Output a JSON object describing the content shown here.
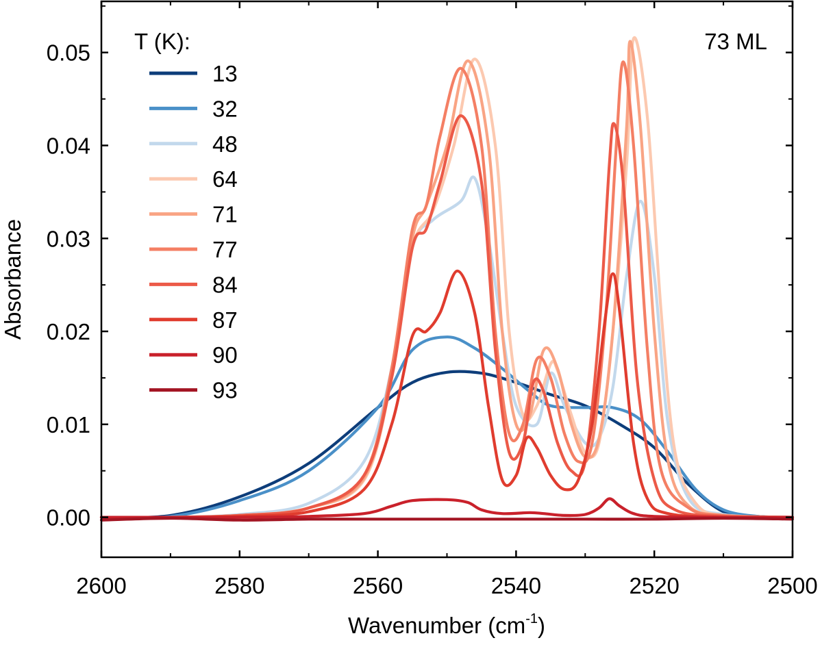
{
  "chart_data": {
    "type": "line",
    "title": "",
    "annotation": "73 ML",
    "xlabel": "Wavenumber (cm",
    "xlabel_sup": "-1",
    "xlabel_end": ")",
    "ylabel": "Absorbance",
    "xlim": [
      2600,
      2500
    ],
    "ylim": [
      -0.0043,
      0.0555
    ],
    "x_ticks": [
      2600,
      2580,
      2560,
      2540,
      2520,
      2500
    ],
    "x_tick_labels": [
      "2600",
      "2580",
      "2560",
      "2540",
      "2520",
      "2500"
    ],
    "y_ticks": [
      0.0,
      0.01,
      0.02,
      0.03,
      0.04,
      0.05
    ],
    "y_tick_labels": [
      "0.00",
      "0.01",
      "0.02",
      "0.03",
      "0.04",
      "0.05"
    ],
    "grid": false,
    "legend": {
      "title": "T (K):",
      "placement": "top-left",
      "entries": [
        "13",
        "32",
        "48",
        "64",
        "71",
        "77",
        "84",
        "87",
        "90",
        "93"
      ]
    },
    "series": [
      {
        "name": "13",
        "color": "#0d3d7a",
        "points": [
          [
            2600,
            0.0
          ],
          [
            2590,
            0.0002
          ],
          [
            2580,
            0.0022
          ],
          [
            2570,
            0.0058
          ],
          [
            2560,
            0.0118
          ],
          [
            2555,
            0.0145
          ],
          [
            2550,
            0.0156
          ],
          [
            2545,
            0.0155
          ],
          [
            2540,
            0.0145
          ],
          [
            2535,
            0.0132
          ],
          [
            2530,
            0.012
          ],
          [
            2525,
            0.01
          ],
          [
            2520,
            0.0075
          ],
          [
            2515,
            0.0035
          ],
          [
            2510,
            0.0006
          ],
          [
            2505,
            0.0001
          ],
          [
            2500,
            0.0
          ]
        ]
      },
      {
        "name": "32",
        "color": "#4a90c8",
        "points": [
          [
            2600,
            0.0
          ],
          [
            2590,
            0.0001
          ],
          [
            2580,
            0.0018
          ],
          [
            2570,
            0.005
          ],
          [
            2560,
            0.0118
          ],
          [
            2555,
            0.018
          ],
          [
            2550,
            0.0194
          ],
          [
            2546,
            0.0182
          ],
          [
            2542,
            0.016
          ],
          [
            2538,
            0.0135
          ],
          [
            2535,
            0.012
          ],
          [
            2530,
            0.0118
          ],
          [
            2526,
            0.0118
          ],
          [
            2522,
            0.0105
          ],
          [
            2518,
            0.007
          ],
          [
            2514,
            0.003
          ],
          [
            2510,
            0.0008
          ],
          [
            2505,
            0.0001
          ],
          [
            2500,
            0.0
          ]
        ]
      },
      {
        "name": "48",
        "color": "#c2d8ec",
        "points": [
          [
            2600,
            0.0
          ],
          [
            2590,
            0.0
          ],
          [
            2580,
            0.0003
          ],
          [
            2570,
            0.0015
          ],
          [
            2562,
            0.006
          ],
          [
            2558,
            0.016
          ],
          [
            2555,
            0.029
          ],
          [
            2552,
            0.032
          ],
          [
            2548,
            0.034
          ],
          [
            2546,
            0.0365
          ],
          [
            2544,
            0.03
          ],
          [
            2542,
            0.02
          ],
          [
            2540,
            0.012
          ],
          [
            2537,
            0.01
          ],
          [
            2535,
            0.0155
          ],
          [
            2533,
            0.012
          ],
          [
            2530,
            0.008
          ],
          [
            2528,
            0.0085
          ],
          [
            2526,
            0.014
          ],
          [
            2524,
            0.026
          ],
          [
            2522,
            0.034
          ],
          [
            2520,
            0.026
          ],
          [
            2518,
            0.01
          ],
          [
            2515,
            0.002
          ],
          [
            2510,
            0.0003
          ],
          [
            2500,
            0.0
          ]
        ]
      },
      {
        "name": "64",
        "color": "#fcc9b0",
        "points": [
          [
            2600,
            0.0
          ],
          [
            2590,
            0.0
          ],
          [
            2580,
            0.0002
          ],
          [
            2570,
            0.001
          ],
          [
            2562,
            0.004
          ],
          [
            2558,
            0.015
          ],
          [
            2555,
            0.029
          ],
          [
            2552,
            0.033
          ],
          [
            2549,
            0.04
          ],
          [
            2546,
            0.0493
          ],
          [
            2543,
            0.04
          ],
          [
            2541,
            0.02
          ],
          [
            2539,
            0.011
          ],
          [
            2537,
            0.012
          ],
          [
            2535,
            0.0165
          ],
          [
            2534,
            0.0158
          ],
          [
            2532,
            0.011
          ],
          [
            2530,
            0.007
          ],
          [
            2528,
            0.008
          ],
          [
            2526,
            0.02
          ],
          [
            2524,
            0.038
          ],
          [
            2523,
            0.0515
          ],
          [
            2521,
            0.043
          ],
          [
            2519,
            0.022
          ],
          [
            2517,
            0.007
          ],
          [
            2514,
            0.0015
          ],
          [
            2510,
            0.0002
          ],
          [
            2500,
            0.0
          ]
        ]
      },
      {
        "name": "71",
        "color": "#f9a484",
        "points": [
          [
            2600,
            0.0
          ],
          [
            2590,
            0.0
          ],
          [
            2580,
            0.0002
          ],
          [
            2570,
            0.001
          ],
          [
            2562,
            0.0042
          ],
          [
            2558,
            0.0155
          ],
          [
            2555,
            0.03
          ],
          [
            2553,
            0.0335
          ],
          [
            2550,
            0.04
          ],
          [
            2547,
            0.0491
          ],
          [
            2544,
            0.04
          ],
          [
            2542,
            0.02
          ],
          [
            2540,
            0.01
          ],
          [
            2538,
            0.011
          ],
          [
            2536,
            0.018
          ],
          [
            2534,
            0.016
          ],
          [
            2532,
            0.01
          ],
          [
            2530,
            0.0065
          ],
          [
            2528,
            0.0085
          ],
          [
            2526,
            0.02
          ],
          [
            2524,
            0.042
          ],
          [
            2523.5,
            0.0512
          ],
          [
            2522,
            0.042
          ],
          [
            2520,
            0.02
          ],
          [
            2518,
            0.006
          ],
          [
            2515,
            0.0012
          ],
          [
            2510,
            0.0002
          ],
          [
            2500,
            0.0
          ]
        ]
      },
      {
        "name": "77",
        "color": "#f47f64",
        "points": [
          [
            2600,
            0.0
          ],
          [
            2590,
            0.0
          ],
          [
            2580,
            0.0002
          ],
          [
            2570,
            0.001
          ],
          [
            2562,
            0.0045
          ],
          [
            2558,
            0.016
          ],
          [
            2555,
            0.031
          ],
          [
            2553,
            0.0335
          ],
          [
            2551,
            0.041
          ],
          [
            2548,
            0.0483
          ],
          [
            2545,
            0.04
          ],
          [
            2543,
            0.02
          ],
          [
            2541,
            0.009
          ],
          [
            2539,
            0.01
          ],
          [
            2537,
            0.017
          ],
          [
            2535,
            0.015
          ],
          [
            2533,
            0.009
          ],
          [
            2531,
            0.006
          ],
          [
            2529,
            0.008
          ],
          [
            2527,
            0.022
          ],
          [
            2525.5,
            0.04
          ],
          [
            2524.5,
            0.049
          ],
          [
            2523,
            0.04
          ],
          [
            2521,
            0.018
          ],
          [
            2519,
            0.005
          ],
          [
            2515,
            0.001
          ],
          [
            2510,
            0.0002
          ],
          [
            2500,
            0.0
          ]
        ]
      },
      {
        "name": "84",
        "color": "#ec5a48",
        "points": [
          [
            2600,
            0.0
          ],
          [
            2590,
            0.0
          ],
          [
            2580,
            0.0002
          ],
          [
            2570,
            0.001
          ],
          [
            2562,
            0.0045
          ],
          [
            2558,
            0.015
          ],
          [
            2555,
            0.029
          ],
          [
            2553,
            0.031
          ],
          [
            2551,
            0.036
          ],
          [
            2548,
            0.0432
          ],
          [
            2545,
            0.036
          ],
          [
            2543,
            0.018
          ],
          [
            2541,
            0.007
          ],
          [
            2539,
            0.008
          ],
          [
            2537.5,
            0.0145
          ],
          [
            2536,
            0.0135
          ],
          [
            2534,
            0.008
          ],
          [
            2532,
            0.005
          ],
          [
            2530,
            0.006
          ],
          [
            2528,
            0.02
          ],
          [
            2526.5,
            0.038
          ],
          [
            2525.8,
            0.0423
          ],
          [
            2524.5,
            0.036
          ],
          [
            2522.5,
            0.015
          ],
          [
            2520,
            0.004
          ],
          [
            2517,
            0.0008
          ],
          [
            2510,
            0.0001
          ],
          [
            2500,
            0.0
          ]
        ]
      },
      {
        "name": "87",
        "color": "#e03c2e",
        "points": [
          [
            2600,
            0.0
          ],
          [
            2590,
            0.0
          ],
          [
            2580,
            0.0001
          ],
          [
            2570,
            0.0006
          ],
          [
            2562,
            0.003
          ],
          [
            2558,
            0.01
          ],
          [
            2555,
            0.0195
          ],
          [
            2553,
            0.02
          ],
          [
            2551,
            0.022
          ],
          [
            2548.5,
            0.0265
          ],
          [
            2546,
            0.022
          ],
          [
            2544,
            0.012
          ],
          [
            2542,
            0.004
          ],
          [
            2540,
            0.0045
          ],
          [
            2538.5,
            0.0085
          ],
          [
            2537,
            0.0075
          ],
          [
            2535,
            0.0045
          ],
          [
            2533,
            0.003
          ],
          [
            2531,
            0.004
          ],
          [
            2529,
            0.01
          ],
          [
            2527,
            0.022
          ],
          [
            2526,
            0.0262
          ],
          [
            2525,
            0.022
          ],
          [
            2523,
            0.008
          ],
          [
            2521,
            0.002
          ],
          [
            2518,
            0.0004
          ],
          [
            2510,
            0.0
          ],
          [
            2500,
            0.0
          ]
        ]
      },
      {
        "name": "90",
        "color": "#c9212b",
        "points": [
          [
            2600,
            0.0
          ],
          [
            2590,
            0.0
          ],
          [
            2580,
            0.0
          ],
          [
            2570,
            0.0001
          ],
          [
            2562,
            0.0004
          ],
          [
            2558,
            0.0012
          ],
          [
            2555,
            0.0018
          ],
          [
            2550,
            0.0019
          ],
          [
            2547,
            0.0016
          ],
          [
            2545,
            0.0008
          ],
          [
            2542,
            0.0004
          ],
          [
            2538,
            0.0005
          ],
          [
            2536,
            0.0004
          ],
          [
            2533,
            0.0002
          ],
          [
            2530,
            0.0003
          ],
          [
            2528,
            0.001
          ],
          [
            2526.5,
            0.002
          ],
          [
            2525,
            0.0012
          ],
          [
            2523,
            0.0004
          ],
          [
            2520,
            0.0001
          ],
          [
            2510,
            0.0
          ],
          [
            2500,
            0.0
          ]
        ]
      },
      {
        "name": "93",
        "color": "#a31523",
        "points": [
          [
            2600,
            -0.0003
          ],
          [
            2590,
            -0.0001
          ],
          [
            2580,
            -0.0003
          ],
          [
            2570,
            -0.0002
          ],
          [
            2560,
            -0.0002
          ],
          [
            2550,
            -0.0002
          ],
          [
            2540,
            -0.0002
          ],
          [
            2530,
            -0.0002
          ],
          [
            2520,
            -0.0002
          ],
          [
            2510,
            -0.0001
          ],
          [
            2500,
            -0.0002
          ]
        ]
      }
    ]
  }
}
